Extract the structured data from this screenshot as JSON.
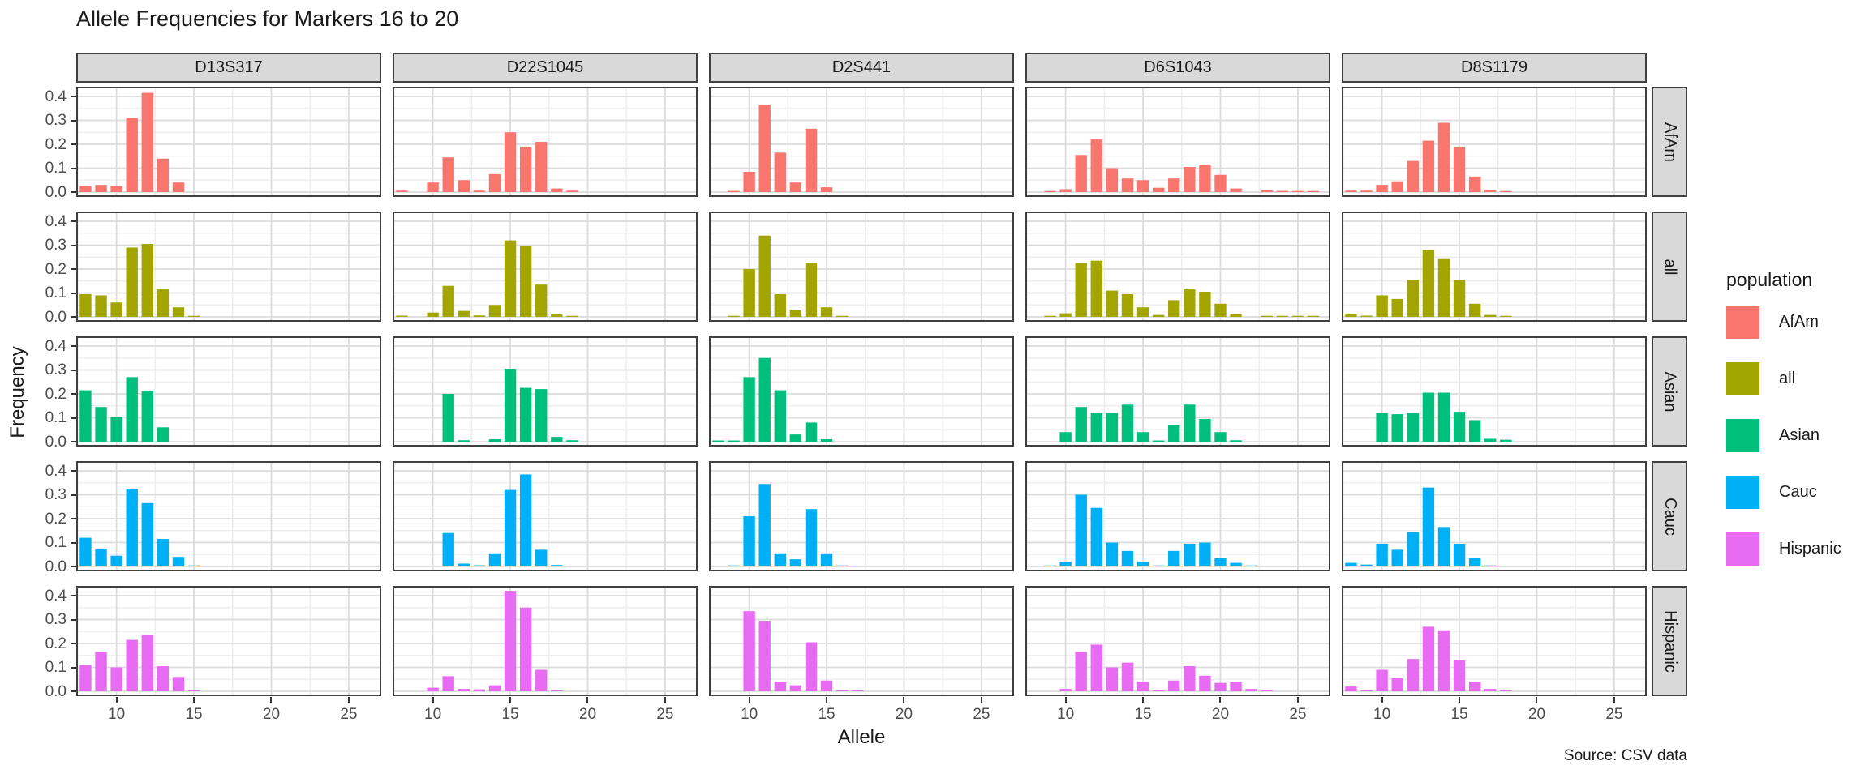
{
  "title": "Allele Frequencies for Markers 16 to 20",
  "caption": "Source: CSV data",
  "legend": {
    "title": "population",
    "items": [
      {
        "label": "AfAm",
        "color": "#F8766D"
      },
      {
        "label": "all",
        "color": "#A3A500"
      },
      {
        "label": "Asian",
        "color": "#00BF7D"
      },
      {
        "label": "Cauc",
        "color": "#00B0F6"
      },
      {
        "label": "Hispanic",
        "color": "#E76BF3"
      }
    ]
  },
  "axes": {
    "x_tick_labels": [
      "10",
      "15",
      "20",
      "25"
    ],
    "y_tick_labels": [
      "0.0",
      "0.1",
      "0.2",
      "0.3",
      "0.4"
    ]
  },
  "chart_data": {
    "type": "bar",
    "layout": "facet_grid",
    "title": "Allele Frequencies for Markers 16 to 20",
    "xlabel": "Allele",
    "ylabel": "Frequency",
    "caption": "Source: CSV data",
    "facet_columns": [
      "D13S317",
      "D22S1045",
      "D2S441",
      "D6S1043",
      "D8S1179"
    ],
    "facet_rows": [
      "AfAm",
      "all",
      "Asian",
      "Cauc",
      "Hispanic"
    ],
    "legend_title": "population",
    "legend_position": "right",
    "colors": {
      "AfAm": "#F8766D",
      "all": "#A3A500",
      "Asian": "#00BF7D",
      "Cauc": "#00B0F6",
      "Hispanic": "#E76BF3"
    },
    "x_ticks": [
      10,
      15,
      20,
      25
    ],
    "x_minor_ticks": [
      7.5,
      12.5,
      17.5,
      22.5
    ],
    "y_ticks": [
      0.0,
      0.1,
      0.2,
      0.3,
      0.4
    ],
    "y_minor_ticks": [
      0.05,
      0.15,
      0.25,
      0.35
    ],
    "xlim": [
      7.4,
      27.1
    ],
    "ylim": [
      0,
      0.43
    ],
    "grid": true,
    "facets": [
      {
        "marker": "D13S317",
        "population": "AfAm",
        "alleles": [
          8,
          9,
          10,
          11,
          12,
          13,
          14
        ],
        "freqs": [
          0.025,
          0.03,
          0.025,
          0.31,
          0.415,
          0.14,
          0.04
        ]
      },
      {
        "marker": "D13S317",
        "population": "all",
        "alleles": [
          8,
          9,
          10,
          11,
          12,
          13,
          14,
          15
        ],
        "freqs": [
          0.095,
          0.09,
          0.06,
          0.29,
          0.305,
          0.115,
          0.04,
          0.004
        ]
      },
      {
        "marker": "D13S317",
        "population": "Asian",
        "alleles": [
          8,
          9,
          10,
          11,
          12,
          13
        ],
        "freqs": [
          0.215,
          0.145,
          0.105,
          0.27,
          0.21,
          0.06
        ]
      },
      {
        "marker": "D13S317",
        "population": "Cauc",
        "alleles": [
          8,
          9,
          10,
          11,
          12,
          13,
          14,
          15
        ],
        "freqs": [
          0.12,
          0.075,
          0.045,
          0.325,
          0.265,
          0.115,
          0.04,
          0.004
        ]
      },
      {
        "marker": "D13S317",
        "population": "Hispanic",
        "alleles": [
          8,
          9,
          10,
          11,
          12,
          13,
          14,
          15
        ],
        "freqs": [
          0.11,
          0.165,
          0.1,
          0.215,
          0.235,
          0.105,
          0.06,
          0.005
        ]
      },
      {
        "marker": "D22S1045",
        "population": "AfAm",
        "alleles": [
          8,
          10,
          11,
          12,
          13,
          14,
          15,
          16,
          17,
          18,
          19
        ],
        "freqs": [
          0.006,
          0.04,
          0.145,
          0.05,
          0.006,
          0.075,
          0.25,
          0.19,
          0.21,
          0.015,
          0.006
        ]
      },
      {
        "marker": "D22S1045",
        "population": "all",
        "alleles": [
          8,
          10,
          11,
          12,
          13,
          14,
          15,
          16,
          17,
          18,
          19
        ],
        "freqs": [
          0.005,
          0.018,
          0.13,
          0.025,
          0.006,
          0.05,
          0.32,
          0.295,
          0.135,
          0.01,
          0.004
        ]
      },
      {
        "marker": "D22S1045",
        "population": "Asian",
        "alleles": [
          11,
          12,
          14,
          15,
          16,
          17,
          18,
          19
        ],
        "freqs": [
          0.2,
          0.006,
          0.01,
          0.305,
          0.225,
          0.22,
          0.02,
          0.006
        ]
      },
      {
        "marker": "D22S1045",
        "population": "Cauc",
        "alleles": [
          11,
          12,
          13,
          14,
          15,
          16,
          17,
          18
        ],
        "freqs": [
          0.14,
          0.012,
          0.005,
          0.055,
          0.32,
          0.385,
          0.07,
          0.006
        ]
      },
      {
        "marker": "D22S1045",
        "population": "Hispanic",
        "alleles": [
          10,
          11,
          12,
          13,
          14,
          15,
          16,
          17,
          18
        ],
        "freqs": [
          0.015,
          0.063,
          0.01,
          0.008,
          0.025,
          0.42,
          0.35,
          0.09,
          0.005
        ]
      },
      {
        "marker": "D2S441",
        "population": "AfAm",
        "alleles": [
          9,
          10,
          11,
          12,
          13,
          14,
          15
        ],
        "freqs": [
          0.005,
          0.085,
          0.365,
          0.165,
          0.04,
          0.265,
          0.02
        ]
      },
      {
        "marker": "D2S441",
        "population": "all",
        "alleles": [
          9,
          10,
          11,
          12,
          13,
          14,
          15,
          16
        ],
        "freqs": [
          0.004,
          0.2,
          0.34,
          0.095,
          0.03,
          0.225,
          0.04,
          0.004
        ]
      },
      {
        "marker": "D2S441",
        "population": "Asian",
        "alleles": [
          8,
          9,
          10,
          11,
          12,
          13,
          14,
          15
        ],
        "freqs": [
          0.005,
          0.005,
          0.27,
          0.35,
          0.215,
          0.03,
          0.08,
          0.01
        ]
      },
      {
        "marker": "D2S441",
        "population": "Cauc",
        "alleles": [
          9,
          10,
          11,
          12,
          13,
          14,
          15,
          16
        ],
        "freqs": [
          0.004,
          0.21,
          0.345,
          0.055,
          0.03,
          0.24,
          0.055,
          0.003
        ]
      },
      {
        "marker": "D2S441",
        "population": "Hispanic",
        "alleles": [
          10,
          11,
          12,
          13,
          14,
          15,
          16,
          17
        ],
        "freqs": [
          0.335,
          0.295,
          0.04,
          0.025,
          0.205,
          0.045,
          0.005,
          0.005
        ]
      },
      {
        "marker": "D6S1043",
        "population": "AfAm",
        "alleles": [
          9,
          10,
          11,
          12,
          13,
          14,
          15,
          16,
          17,
          18,
          19,
          20,
          21,
          23,
          24,
          25,
          26
        ],
        "freqs": [
          0.004,
          0.012,
          0.155,
          0.22,
          0.1,
          0.057,
          0.05,
          0.018,
          0.057,
          0.105,
          0.115,
          0.072,
          0.015,
          0.007,
          0.005,
          0.004,
          0.004
        ]
      },
      {
        "marker": "D6S1043",
        "population": "all",
        "alleles": [
          9,
          10,
          11,
          12,
          13,
          14,
          15,
          16,
          17,
          18,
          19,
          20,
          21,
          23,
          24,
          25,
          26
        ],
        "freqs": [
          0.003,
          0.015,
          0.225,
          0.235,
          0.11,
          0.095,
          0.04,
          0.008,
          0.07,
          0.115,
          0.105,
          0.055,
          0.012,
          0.004,
          0.003,
          0.003,
          0.002
        ]
      },
      {
        "marker": "D6S1043",
        "population": "Asian",
        "alleles": [
          10,
          11,
          12,
          13,
          14,
          15,
          16,
          17,
          18,
          19,
          20,
          21
        ],
        "freqs": [
          0.04,
          0.145,
          0.12,
          0.12,
          0.155,
          0.04,
          0.005,
          0.07,
          0.155,
          0.095,
          0.04,
          0.006
        ]
      },
      {
        "marker": "D6S1043",
        "population": "Cauc",
        "alleles": [
          9,
          10,
          11,
          12,
          13,
          14,
          15,
          16,
          17,
          18,
          19,
          20,
          21,
          22
        ],
        "freqs": [
          0.003,
          0.02,
          0.3,
          0.245,
          0.1,
          0.065,
          0.02,
          0.004,
          0.065,
          0.095,
          0.1,
          0.035,
          0.015,
          0.003
        ]
      },
      {
        "marker": "D6S1043",
        "population": "Hispanic",
        "alleles": [
          10,
          11,
          12,
          13,
          14,
          15,
          16,
          17,
          18,
          19,
          20,
          21,
          22,
          23
        ],
        "freqs": [
          0.01,
          0.165,
          0.195,
          0.1,
          0.12,
          0.04,
          0.004,
          0.045,
          0.105,
          0.065,
          0.035,
          0.04,
          0.01,
          0.004
        ]
      },
      {
        "marker": "D8S1179",
        "population": "AfAm",
        "alleles": [
          8,
          9,
          10,
          11,
          12,
          13,
          14,
          15,
          16,
          17,
          18
        ],
        "freqs": [
          0.006,
          0.006,
          0.03,
          0.045,
          0.13,
          0.215,
          0.29,
          0.19,
          0.065,
          0.008,
          0.004
        ]
      },
      {
        "marker": "D8S1179",
        "population": "all",
        "alleles": [
          8,
          9,
          10,
          11,
          12,
          13,
          14,
          15,
          16,
          17,
          18
        ],
        "freqs": [
          0.01,
          0.005,
          0.09,
          0.075,
          0.155,
          0.28,
          0.245,
          0.155,
          0.055,
          0.008,
          0.004
        ]
      },
      {
        "marker": "D8S1179",
        "population": "Asian",
        "alleles": [
          10,
          11,
          12,
          13,
          14,
          15,
          16,
          17,
          18
        ],
        "freqs": [
          0.12,
          0.115,
          0.12,
          0.205,
          0.205,
          0.125,
          0.09,
          0.012,
          0.008
        ]
      },
      {
        "marker": "D8S1179",
        "population": "Cauc",
        "alleles": [
          8,
          9,
          10,
          11,
          12,
          13,
          14,
          15,
          16,
          17
        ],
        "freqs": [
          0.015,
          0.008,
          0.095,
          0.07,
          0.145,
          0.33,
          0.165,
          0.095,
          0.035,
          0.004
        ]
      },
      {
        "marker": "D8S1179",
        "population": "Hispanic",
        "alleles": [
          8,
          9,
          10,
          11,
          12,
          13,
          14,
          15,
          16,
          17,
          18
        ],
        "freqs": [
          0.02,
          0.005,
          0.09,
          0.055,
          0.135,
          0.27,
          0.255,
          0.13,
          0.04,
          0.01,
          0.005
        ]
      }
    ]
  }
}
